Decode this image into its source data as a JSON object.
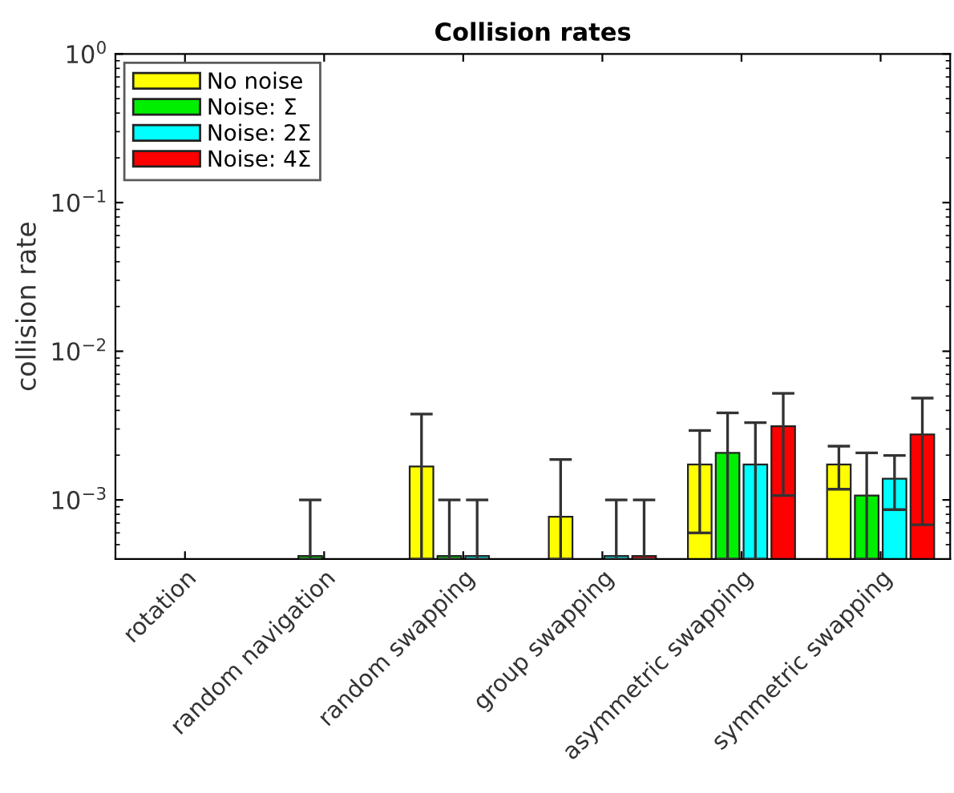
{
  "chart_data": {
    "type": "bar",
    "title": "Collision rates",
    "ylabel": "collision rate",
    "categories": [
      "rotation",
      "random navigation",
      "random swapping",
      "group swapping",
      "asymmetric swapping",
      "symmetric swapping"
    ],
    "series": [
      {
        "name": "No noise",
        "color": "#ffff00",
        "values": [
          null,
          null,
          0.00168,
          0.00077,
          0.00173,
          0.00173
        ],
        "errors": [
          null,
          null,
          [
            0.0004,
            0.00378
          ],
          [
            0.0004,
            0.00187
          ],
          [
            0.0006,
            0.00293
          ],
          [
            0.00118,
            0.0023
          ]
        ]
      },
      {
        "name": "Noise: Σ",
        "color": "#00ee00",
        "values": [
          null,
          0.00042,
          0.00042,
          null,
          0.00207,
          0.00107
        ],
        "errors": [
          null,
          [
            0.0004,
            0.001
          ],
          [
            0.0004,
            0.001
          ],
          null,
          [
            0.0004,
            0.00385
          ],
          [
            0.0004,
            0.00207
          ]
        ]
      },
      {
        "name": "Noise: 2Σ",
        "color": "#00ffff",
        "values": [
          null,
          null,
          0.00042,
          0.00042,
          0.00173,
          0.00139
        ],
        "errors": [
          null,
          null,
          [
            0.0004,
            0.001
          ],
          [
            0.0004,
            0.001
          ],
          [
            0.0004,
            0.00331
          ],
          [
            0.00086,
            0.00199
          ]
        ]
      },
      {
        "name": "Noise: 4Σ",
        "color": "#ff0000",
        "values": [
          null,
          null,
          null,
          0.00042,
          0.00313,
          0.00276
        ],
        "errors": [
          null,
          null,
          null,
          [
            0.0004,
            0.001
          ],
          [
            0.00107,
            0.00521
          ],
          [
            0.00068,
            0.00484
          ]
        ]
      }
    ],
    "log": true,
    "ylim": [
      0.0004,
      1
    ],
    "yticks": [
      {
        "value": 0.001,
        "label": "10$^{−3}$"
      },
      {
        "value": 0.01,
        "label": "10$^{−2}$"
      },
      {
        "value": 0.1,
        "label": "10$^{−1}$"
      },
      {
        "value": 1,
        "label": "10$^{0}$"
      }
    ],
    "legend": "top left",
    "grid": false
  }
}
